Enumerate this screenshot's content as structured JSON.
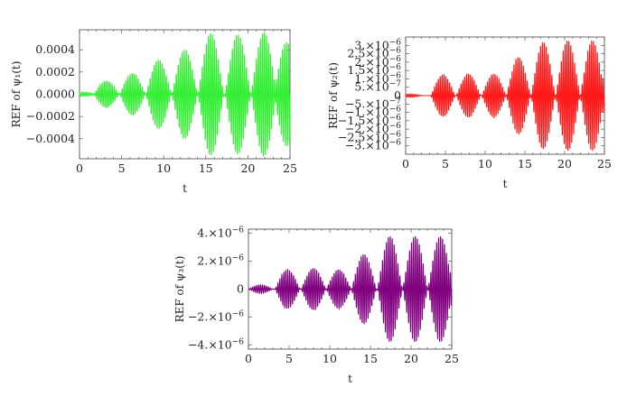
{
  "chart_data": [
    {
      "type": "line",
      "xlabel": "t",
      "ylabel": "REF of ψ₁(t)",
      "xlim": [
        0,
        25
      ],
      "ylim": [
        -0.00058,
        0.00058
      ],
      "xticks": [
        0,
        5,
        10,
        15,
        20,
        25
      ],
      "yticks": [
        -0.0004,
        -0.0002,
        0,
        0.0002,
        0.0004
      ],
      "ytick_labels": [
        "−0.0004",
        "−0.0002",
        "0.0000",
        "0.0002",
        "0.0004"
      ],
      "color": "#33ee33",
      "beat_peaks": [
        {
          "t": 0.5,
          "amp": 2e-05
        },
        {
          "t": 3.2,
          "amp": 0.00012
        },
        {
          "t": 6.3,
          "amp": 0.00019
        },
        {
          "t": 9.4,
          "amp": 0.00031
        },
        {
          "t": 12.5,
          "amp": 0.0004
        },
        {
          "t": 15.6,
          "amp": 0.00055
        },
        {
          "t": 18.8,
          "amp": 0.00054
        },
        {
          "t": 21.9,
          "amp": 0.00056
        },
        {
          "t": 24.6,
          "amp": 0.00047
        }
      ]
    },
    {
      "type": "line",
      "xlabel": "t",
      "ylabel": "REF of ψ₂(t)",
      "xlim": [
        0,
        25
      ],
      "ylim": [
        -3.5e-06,
        3.5e-06
      ],
      "xticks": [
        0,
        5,
        10,
        15,
        20,
        25
      ],
      "yticks": [
        -3e-06,
        -2.5e-06,
        -2e-06,
        -1.5e-06,
        -1e-06,
        -5e-07,
        0,
        5e-07,
        1e-06,
        1.5e-06,
        2e-06,
        2.5e-06,
        3e-06
      ],
      "ytick_labels": [
        "−3.×10",
        "−2.5×10",
        "−2.×10",
        "−1.5×10",
        "−1.×10",
        "−5.×10",
        "0",
        "5.×10",
        "1.×10",
        "1.5×10",
        "2.×10",
        "2.5×10",
        "3.×10"
      ],
      "ytick_exponents": [
        "−6",
        "−6",
        "−6",
        "−6",
        "−6",
        "−7",
        "",
        "−7",
        "−6",
        "−6",
        "−6",
        "−6",
        "−6"
      ],
      "color": "#ff1a1a",
      "beat_peaks": [
        {
          "t": 0.6,
          "amp": 1e-07
        },
        {
          "t": 4.7,
          "amp": 1.25e-06
        },
        {
          "t": 7.9,
          "amp": 1.3e-06
        },
        {
          "t": 11.1,
          "amp": 1.3e-06
        },
        {
          "t": 14.2,
          "amp": 2.3e-06
        },
        {
          "t": 17.3,
          "amp": 3.2e-06
        },
        {
          "t": 20.4,
          "amp": 3.3e-06
        },
        {
          "t": 23.5,
          "amp": 3.3e-06
        },
        {
          "t": 24.8,
          "amp": 1e-06
        }
      ]
    },
    {
      "type": "line",
      "xlabel": "t",
      "ylabel": "REF of ψ₃(t)",
      "xlim": [
        0,
        25
      ],
      "ylim": [
        -4.3e-06,
        4.3e-06
      ],
      "xticks": [
        0,
        5,
        10,
        15,
        20,
        25
      ],
      "yticks": [
        -4e-06,
        -2e-06,
        0,
        2e-06,
        4e-06
      ],
      "ytick_labels": [
        "−4.×10",
        "−2.×10",
        "0",
        "2.×10",
        "4.×10"
      ],
      "ytick_exponents": [
        "−6",
        "−6",
        "",
        "−6",
        "−6"
      ],
      "color": "#800080",
      "beat_peaks": [
        {
          "t": 1.5,
          "amp": 3e-07
        },
        {
          "t": 4.8,
          "amp": 1.4e-06
        },
        {
          "t": 8.0,
          "amp": 1.5e-06
        },
        {
          "t": 11.1,
          "amp": 1.4e-06
        },
        {
          "t": 14.2,
          "amp": 2.5e-06
        },
        {
          "t": 17.4,
          "amp": 3.8e-06
        },
        {
          "t": 20.5,
          "amp": 3.8e-06
        },
        {
          "t": 23.6,
          "amp": 3.8e-06
        },
        {
          "t": 24.9,
          "amp": 1.2e-06
        }
      ]
    }
  ]
}
